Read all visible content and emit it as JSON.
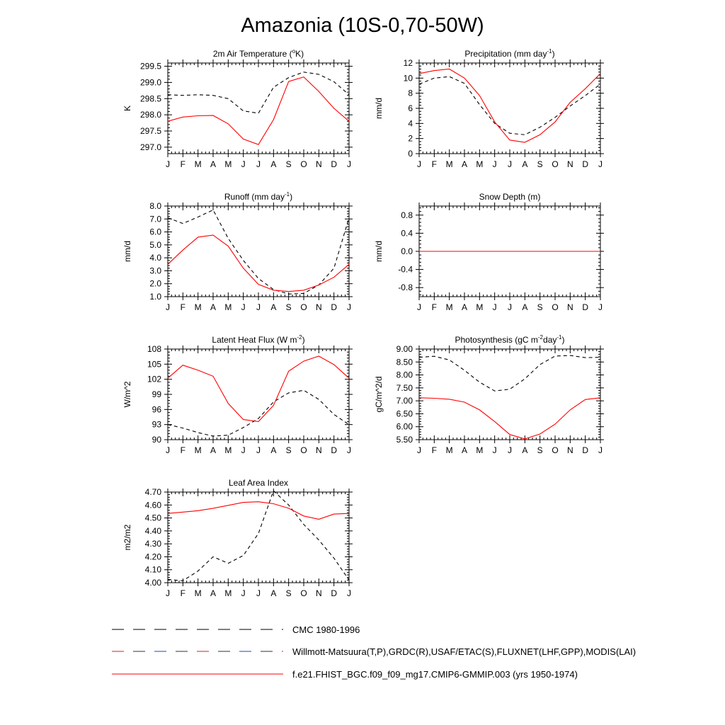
{
  "title": "Amazonia (10S-0,70-50W)",
  "legend": [
    {
      "label": "CMC 1980-1996",
      "color": "#000000",
      "dash": "long"
    },
    {
      "label": "Willmott-Matsuura(T,P),GRDC(R),USAF/ETAC(S),FLUXNET(LHF,GPP),MODIS(LAI)",
      "color": "#000000",
      "dash": "long-multicolor"
    },
    {
      "label": "f.e21.FHIST_BGC.f09_f09_mg17.CMIP6-GMMIP.003 (yrs 1950-1974)",
      "color": "#ff0000",
      "dash": "solid"
    }
  ],
  "chart_data": [
    {
      "type": "line",
      "title": "2m Air Temperature (oK)",
      "ylabel": "K",
      "x": [
        "J",
        "F",
        "M",
        "A",
        "M",
        "J",
        "J",
        "A",
        "S",
        "O",
        "N",
        "D",
        "J"
      ],
      "ylim": [
        296.8,
        299.6
      ],
      "yticks": [
        297.0,
        297.5,
        298.0,
        298.5,
        299.0,
        299.5
      ],
      "ytick_labels": [
        "297.0",
        "297.5",
        "298.0",
        "298.5",
        "299.0",
        "299.5"
      ],
      "series": [
        {
          "style": "dashed",
          "color": "#000000",
          "values": [
            298.62,
            298.6,
            298.62,
            298.6,
            298.5,
            298.12,
            298.05,
            298.85,
            299.15,
            299.32,
            299.25,
            299.02,
            298.62
          ]
        },
        {
          "style": "solid",
          "color": "#ff0000",
          "values": [
            297.8,
            297.93,
            297.97,
            297.98,
            297.72,
            297.25,
            297.08,
            297.85,
            299.03,
            299.17,
            298.72,
            298.2,
            297.8
          ]
        }
      ]
    },
    {
      "type": "line",
      "title": "Precipitation (mm day-1)",
      "ylabel": "mm/d",
      "x": [
        "J",
        "F",
        "M",
        "A",
        "M",
        "J",
        "J",
        "A",
        "S",
        "O",
        "N",
        "D",
        "J"
      ],
      "ylim": [
        0,
        12
      ],
      "yticks": [
        0,
        2,
        4,
        6,
        8,
        10,
        12
      ],
      "ytick_labels": [
        "0",
        "2",
        "4",
        "6",
        "8",
        "10",
        "12"
      ],
      "series": [
        {
          "style": "dashed",
          "color": "#000000",
          "values": [
            9.2,
            10.0,
            10.2,
            9.3,
            6.5,
            4.0,
            2.7,
            2.5,
            3.5,
            4.8,
            6.3,
            7.7,
            9.2
          ]
        },
        {
          "style": "solid",
          "color": "#ff0000",
          "values": [
            10.6,
            11.0,
            11.2,
            10.0,
            7.7,
            4.2,
            1.8,
            1.5,
            2.5,
            4.2,
            6.8,
            8.6,
            10.6
          ]
        }
      ]
    },
    {
      "type": "line",
      "title": "Runoff (mm day-1)",
      "ylabel": "mm/d",
      "x": [
        "J",
        "F",
        "M",
        "A",
        "M",
        "J",
        "J",
        "A",
        "S",
        "O",
        "N",
        "D",
        "J"
      ],
      "ylim": [
        1.0,
        8.0
      ],
      "yticks": [
        1.0,
        2.0,
        3.0,
        4.0,
        5.0,
        6.0,
        7.0,
        8.0
      ],
      "ytick_labels": [
        "1.0",
        "2.0",
        "3.0",
        "4.0",
        "5.0",
        "6.0",
        "7.0",
        "8.0"
      ],
      "series": [
        {
          "style": "dashed",
          "color": "#000000",
          "values": [
            7.1,
            6.65,
            7.15,
            7.7,
            5.5,
            3.8,
            2.4,
            1.55,
            1.2,
            1.25,
            1.9,
            3.2,
            7.1
          ]
        },
        {
          "style": "solid",
          "color": "#ff0000",
          "values": [
            3.5,
            4.6,
            5.6,
            5.75,
            4.9,
            3.2,
            1.95,
            1.5,
            1.4,
            1.5,
            1.9,
            2.5,
            3.5
          ]
        }
      ]
    },
    {
      "type": "line",
      "title": "Snow Depth (m)",
      "ylabel": "mm/d",
      "x": [
        "J",
        "F",
        "M",
        "A",
        "M",
        "J",
        "J",
        "A",
        "S",
        "O",
        "N",
        "D",
        "J"
      ],
      "ylim": [
        -1.0,
        1.0
      ],
      "yticks": [
        -0.8,
        -0.4,
        0.0,
        0.4,
        0.8
      ],
      "ytick_labels": [
        "-0.8",
        "-0.4",
        "0.0",
        "0.4",
        "0.8"
      ],
      "series": [
        {
          "style": "dashed",
          "color": "#000000",
          "values": [
            0,
            0,
            0,
            0,
            0,
            0,
            0,
            0,
            0,
            0,
            0,
            0,
            0
          ]
        },
        {
          "style": "solid",
          "color": "#ff0000",
          "values": [
            0,
            0,
            0,
            0,
            0,
            0,
            0,
            0,
            0,
            0,
            0,
            0,
            0
          ]
        }
      ]
    },
    {
      "type": "line",
      "title": "Latent Heat Flux (W m-2)",
      "ylabel": "W/m^2",
      "x": [
        "J",
        "F",
        "M",
        "A",
        "M",
        "J",
        "J",
        "A",
        "S",
        "O",
        "N",
        "D",
        "J"
      ],
      "ylim": [
        90,
        108
      ],
      "yticks": [
        90,
        93,
        96,
        99,
        102,
        105,
        108
      ],
      "ytick_labels": [
        "90",
        "93",
        "96",
        "99",
        "102",
        "105",
        "108"
      ],
      "series": [
        {
          "style": "dashed",
          "color": "#000000",
          "values": [
            93.0,
            92.3,
            91.4,
            90.7,
            90.9,
            92.4,
            94.2,
            97.5,
            99.3,
            99.8,
            98.0,
            95.0,
            93.0
          ]
        },
        {
          "style": "solid",
          "color": "#ff0000",
          "values": [
            102.2,
            104.8,
            103.8,
            102.6,
            97.2,
            94.0,
            93.6,
            96.8,
            103.6,
            105.6,
            106.6,
            104.9,
            102.2
          ]
        }
      ]
    },
    {
      "type": "line",
      "title": "Photosynthesis (gC m-2day-1)",
      "ylabel": "gC/m^2/d",
      "x": [
        "J",
        "F",
        "M",
        "A",
        "M",
        "J",
        "J",
        "A",
        "S",
        "O",
        "N",
        "D",
        "J"
      ],
      "ylim": [
        5.5,
        9.0
      ],
      "yticks": [
        5.5,
        6.0,
        6.5,
        7.0,
        7.5,
        8.0,
        8.5,
        9.0
      ],
      "ytick_labels": [
        "5.50",
        "6.00",
        "6.50",
        "7.00",
        "7.50",
        "8.00",
        "8.50",
        "9.00"
      ],
      "series": [
        {
          "style": "dashed",
          "color": "#000000",
          "values": [
            8.68,
            8.72,
            8.58,
            8.18,
            7.72,
            7.38,
            7.45,
            7.85,
            8.4,
            8.73,
            8.75,
            8.67,
            8.68
          ]
        },
        {
          "style": "solid",
          "color": "#ff0000",
          "values": [
            7.12,
            7.1,
            7.06,
            6.95,
            6.65,
            6.2,
            5.7,
            5.53,
            5.72,
            6.1,
            6.65,
            7.05,
            7.12
          ]
        }
      ]
    },
    {
      "type": "line",
      "title": "Leaf Area Index",
      "ylabel": "m2/m2",
      "x": [
        "J",
        "F",
        "M",
        "A",
        "M",
        "J",
        "J",
        "A",
        "S",
        "O",
        "N",
        "D",
        "J"
      ],
      "ylim": [
        4.0,
        4.7
      ],
      "yticks": [
        4.0,
        4.1,
        4.2,
        4.3,
        4.4,
        4.5,
        4.6,
        4.7
      ],
      "ytick_labels": [
        "4.00",
        "4.10",
        "4.20",
        "4.30",
        "4.40",
        "4.50",
        "4.60",
        "4.70"
      ],
      "series": [
        {
          "style": "dashed",
          "color": "#000000",
          "values": [
            4.025,
            4.015,
            4.09,
            4.2,
            4.15,
            4.21,
            4.38,
            4.71,
            4.6,
            4.45,
            4.33,
            4.19,
            4.02
          ]
        },
        {
          "style": "solid",
          "color": "#ff0000",
          "values": [
            4.535,
            4.545,
            4.556,
            4.575,
            4.597,
            4.62,
            4.625,
            4.61,
            4.575,
            4.515,
            4.49,
            4.53,
            4.535
          ]
        }
      ]
    }
  ]
}
